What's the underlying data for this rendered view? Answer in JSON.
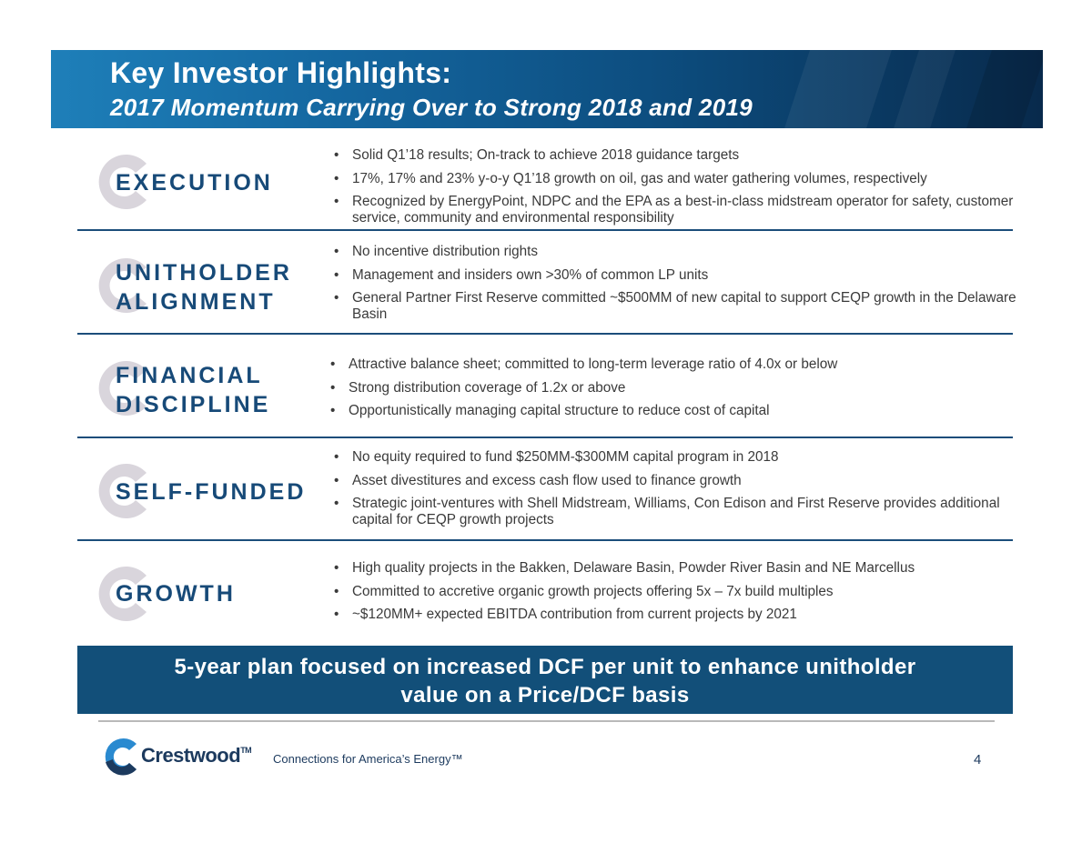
{
  "header": {
    "title": "Key Investor Highlights:",
    "subtitle": "2017 Momentum Carrying Over to Strong 2018 and 2019"
  },
  "sections": [
    {
      "label_lines": [
        "EXECUTION"
      ],
      "bullets": [
        "Solid Q1’18 results; On-track to achieve 2018 guidance targets",
        "17%, 17% and 23% y-o-y Q1’18 growth on oil, gas and water gathering volumes, respectively",
        "Recognized by EnergyPoint, NDPC and the EPA as a best-in-class midstream operator for safety, customer service, community and environmental responsibility"
      ]
    },
    {
      "label_lines": [
        "UNITHOLDER",
        "ALIGNMENT"
      ],
      "bullets": [
        "No incentive distribution rights",
        "Management and insiders own >30% of common LP units",
        "General Partner First Reserve committed ~$500MM of new capital to support CEQP growth in the Delaware Basin"
      ]
    },
    {
      "label_lines": [
        "FINANCIAL",
        "DISCIPLINE"
      ],
      "bullets": [
        "Attractive balance sheet; committed to long-term leverage ratio of 4.0x or below",
        "Strong distribution coverage of 1.2x or above",
        "Opportunistically managing capital structure to reduce cost of capital"
      ]
    },
    {
      "label_lines": [
        "SELF-FUNDED"
      ],
      "bullets": [
        "No equity required to fund $250MM-$300MM capital program in 2018",
        "Asset divestitures and excess cash flow used to finance growth",
        "Strategic joint-ventures with Shell Midstream, Williams, Con Edison and First Reserve provides additional capital for CEQP growth projects"
      ]
    },
    {
      "label_lines": [
        "GROWTH"
      ],
      "bullets": [
        "High quality projects in the Bakken, Delaware Basin, Powder River Basin and NE Marcellus",
        "Committed to accretive organic growth projects offering 5x – 7x build multiples",
        "~$120MM+ expected EBITDA contribution from current projects by 2021"
      ]
    }
  ],
  "banner": {
    "line1": "5-year plan focused on increased DCF per unit to enhance unitholder",
    "line2": "value on a Price/DCF basis"
  },
  "footer": {
    "logo_text": "Crestwood",
    "logo_tm": "TM",
    "tagline": "Connections for America’s Energy™",
    "page_number": "4"
  },
  "colors": {
    "navy": "#174a78",
    "banner": "#124f79",
    "mark_gray": "#d9d5dc",
    "logo_blue": "#2a8ad0",
    "logo_navy": "#1c3a5e"
  }
}
